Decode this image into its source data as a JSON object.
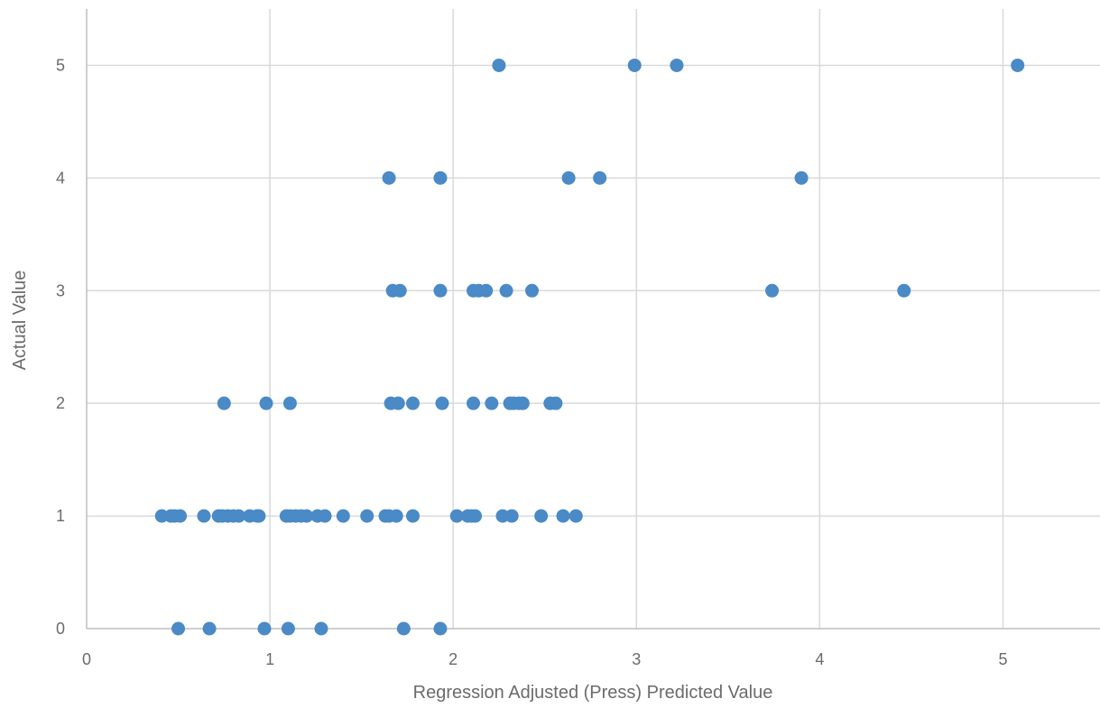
{
  "chart_data": {
    "type": "scatter",
    "title": "",
    "xlabel": "Regression Adjusted (Press) Predicted Value",
    "ylabel": "Actual Value",
    "xlim": [
      0,
      5.5
    ],
    "ylim": [
      0,
      5.5
    ],
    "x_ticks": [
      "0",
      "1",
      "2",
      "3",
      "4",
      "5"
    ],
    "y_ticks": [
      "0",
      "1",
      "2",
      "3",
      "4",
      "5"
    ],
    "grid": true,
    "legend": "none",
    "marker_color": "#4a8ac6",
    "grid_color": "#d9d9d9",
    "axis_color": "#bfbfbf",
    "series": [
      {
        "points": [
          [
            2.25,
            5
          ],
          [
            2.99,
            5
          ],
          [
            3.22,
            5
          ],
          [
            5.08,
            5
          ],
          [
            1.65,
            4
          ],
          [
            1.93,
            4
          ],
          [
            2.63,
            4
          ],
          [
            2.8,
            4
          ],
          [
            3.9,
            4
          ],
          [
            1.67,
            3
          ],
          [
            1.71,
            3
          ],
          [
            1.93,
            3
          ],
          [
            2.11,
            3
          ],
          [
            2.14,
            3
          ],
          [
            2.18,
            3
          ],
          [
            2.29,
            3
          ],
          [
            2.43,
            3
          ],
          [
            3.74,
            3
          ],
          [
            4.46,
            3
          ],
          [
            0.75,
            2
          ],
          [
            0.98,
            2
          ],
          [
            1.11,
            2
          ],
          [
            1.66,
            2
          ],
          [
            1.7,
            2
          ],
          [
            1.78,
            2
          ],
          [
            1.94,
            2
          ],
          [
            2.11,
            2
          ],
          [
            2.21,
            2
          ],
          [
            2.31,
            2
          ],
          [
            2.33,
            2
          ],
          [
            2.36,
            2
          ],
          [
            2.38,
            2
          ],
          [
            2.53,
            2
          ],
          [
            2.56,
            2
          ],
          [
            0.41,
            1
          ],
          [
            0.46,
            1
          ],
          [
            0.48,
            1
          ],
          [
            0.51,
            1
          ],
          [
            0.64,
            1
          ],
          [
            0.72,
            1
          ],
          [
            0.74,
            1
          ],
          [
            0.77,
            1
          ],
          [
            0.8,
            1
          ],
          [
            0.83,
            1
          ],
          [
            0.89,
            1
          ],
          [
            0.93,
            1
          ],
          [
            0.94,
            1
          ],
          [
            1.09,
            1
          ],
          [
            1.11,
            1
          ],
          [
            1.14,
            1
          ],
          [
            1.17,
            1
          ],
          [
            1.2,
            1
          ],
          [
            1.26,
            1
          ],
          [
            1.3,
            1
          ],
          [
            1.4,
            1
          ],
          [
            1.53,
            1
          ],
          [
            1.63,
            1
          ],
          [
            1.65,
            1
          ],
          [
            1.69,
            1
          ],
          [
            1.78,
            1
          ],
          [
            2.02,
            1
          ],
          [
            2.08,
            1
          ],
          [
            2.1,
            1
          ],
          [
            2.12,
            1
          ],
          [
            2.27,
            1
          ],
          [
            2.32,
            1
          ],
          [
            2.48,
            1
          ],
          [
            2.6,
            1
          ],
          [
            2.67,
            1
          ],
          [
            0.5,
            0
          ],
          [
            0.67,
            0
          ],
          [
            0.97,
            0
          ],
          [
            1.1,
            0
          ],
          [
            1.28,
            0
          ],
          [
            1.73,
            0
          ],
          [
            1.93,
            0
          ]
        ]
      }
    ]
  }
}
